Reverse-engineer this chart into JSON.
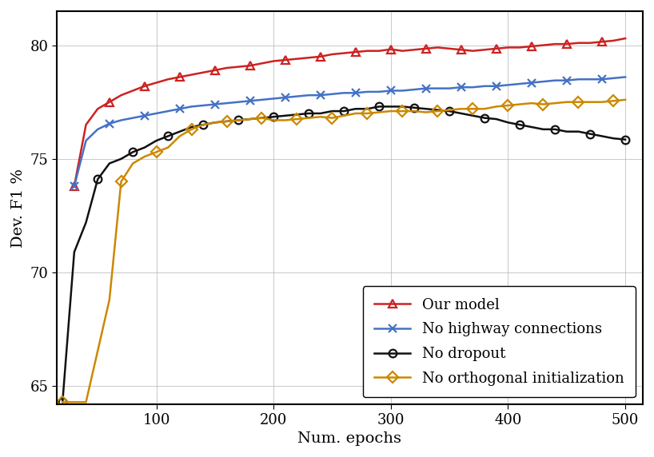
{
  "title": "",
  "xlabel": "Num. epochs",
  "ylabel": "Dev. F1 %",
  "xlim": [
    15,
    515
  ],
  "ylim": [
    64.2,
    81.5
  ],
  "xticks": [
    100,
    200,
    300,
    400,
    500
  ],
  "yticks": [
    65,
    70,
    75,
    80
  ],
  "background_color": "#ffffff",
  "series": [
    {
      "label": "Our model",
      "color": "#cc2222",
      "marker": "^",
      "x": [
        30,
        40,
        50,
        60,
        70,
        80,
        90,
        100,
        110,
        120,
        130,
        140,
        150,
        160,
        170,
        180,
        190,
        200,
        210,
        220,
        230,
        240,
        250,
        260,
        270,
        280,
        290,
        300,
        310,
        320,
        330,
        340,
        350,
        360,
        370,
        380,
        390,
        400,
        410,
        420,
        430,
        440,
        450,
        460,
        470,
        480,
        490,
        500
      ],
      "y": [
        73.8,
        76.5,
        77.2,
        77.5,
        77.8,
        78.0,
        78.2,
        78.35,
        78.5,
        78.6,
        78.7,
        78.8,
        78.9,
        79.0,
        79.05,
        79.1,
        79.2,
        79.3,
        79.35,
        79.4,
        79.45,
        79.5,
        79.6,
        79.65,
        79.7,
        79.75,
        79.75,
        79.82,
        79.75,
        79.8,
        79.85,
        79.9,
        79.85,
        79.8,
        79.75,
        79.8,
        79.85,
        79.9,
        79.9,
        79.95,
        80.0,
        80.05,
        80.05,
        80.1,
        80.1,
        80.15,
        80.2,
        80.3
      ]
    },
    {
      "label": "No highway connections",
      "color": "#4472c4",
      "marker": "x",
      "x": [
        30,
        40,
        50,
        60,
        70,
        80,
        90,
        100,
        110,
        120,
        130,
        140,
        150,
        160,
        170,
        180,
        190,
        200,
        210,
        220,
        230,
        240,
        250,
        260,
        270,
        280,
        290,
        300,
        310,
        320,
        330,
        340,
        350,
        360,
        370,
        380,
        390,
        400,
        410,
        420,
        430,
        440,
        450,
        460,
        470,
        480,
        490,
        500
      ],
      "y": [
        73.8,
        75.8,
        76.3,
        76.55,
        76.7,
        76.8,
        76.9,
        77.0,
        77.1,
        77.2,
        77.3,
        77.35,
        77.4,
        77.45,
        77.5,
        77.55,
        77.6,
        77.65,
        77.7,
        77.75,
        77.8,
        77.8,
        77.85,
        77.9,
        77.9,
        77.95,
        77.95,
        78.0,
        78.0,
        78.05,
        78.1,
        78.1,
        78.1,
        78.15,
        78.15,
        78.2,
        78.2,
        78.25,
        78.3,
        78.35,
        78.4,
        78.45,
        78.45,
        78.5,
        78.5,
        78.5,
        78.55,
        78.6
      ]
    },
    {
      "label": "No dropout",
      "color": "#111111",
      "marker": "o",
      "x": [
        20,
        30,
        40,
        50,
        60,
        70,
        80,
        90,
        100,
        110,
        120,
        130,
        140,
        150,
        160,
        170,
        180,
        190,
        200,
        210,
        220,
        230,
        240,
        250,
        260,
        270,
        280,
        290,
        300,
        310,
        320,
        330,
        340,
        350,
        360,
        370,
        380,
        390,
        400,
        410,
        420,
        430,
        440,
        450,
        460,
        470,
        480,
        490,
        500
      ],
      "y": [
        64.3,
        70.9,
        72.2,
        74.1,
        74.8,
        75.0,
        75.3,
        75.5,
        75.8,
        76.0,
        76.2,
        76.4,
        76.5,
        76.6,
        76.65,
        76.7,
        76.75,
        76.8,
        76.85,
        76.9,
        76.95,
        77.0,
        77.0,
        77.1,
        77.1,
        77.2,
        77.2,
        77.3,
        77.3,
        77.3,
        77.25,
        77.2,
        77.15,
        77.1,
        77.0,
        76.9,
        76.8,
        76.75,
        76.6,
        76.5,
        76.4,
        76.3,
        76.3,
        76.2,
        76.2,
        76.1,
        76.0,
        75.9,
        75.85
      ]
    },
    {
      "label": "No orthogonal initialization",
      "color": "#cc8800",
      "marker": "D",
      "x": [
        20,
        40,
        60,
        70,
        80,
        90,
        100,
        110,
        120,
        130,
        140,
        150,
        160,
        170,
        180,
        190,
        200,
        210,
        220,
        230,
        240,
        250,
        260,
        270,
        280,
        290,
        300,
        310,
        320,
        330,
        340,
        350,
        360,
        370,
        380,
        390,
        400,
        410,
        420,
        430,
        440,
        450,
        460,
        470,
        480,
        490,
        500
      ],
      "y": [
        64.3,
        64.3,
        68.8,
        74.0,
        74.8,
        75.1,
        75.3,
        75.5,
        76.0,
        76.3,
        76.5,
        76.6,
        76.65,
        76.7,
        76.75,
        76.8,
        76.7,
        76.7,
        76.75,
        76.8,
        76.85,
        76.8,
        76.9,
        77.0,
        77.0,
        77.05,
        77.1,
        77.1,
        77.1,
        77.05,
        77.1,
        77.15,
        77.2,
        77.2,
        77.2,
        77.3,
        77.35,
        77.4,
        77.45,
        77.4,
        77.45,
        77.5,
        77.5,
        77.5,
        77.5,
        77.55,
        77.6
      ]
    }
  ],
  "legend_loc": "lower right",
  "grid": true,
  "fontsize_label": 14,
  "fontsize_tick": 13,
  "fontsize_legend": 13,
  "linewidth": 1.8,
  "marker_size": 7,
  "marker_every": 3
}
